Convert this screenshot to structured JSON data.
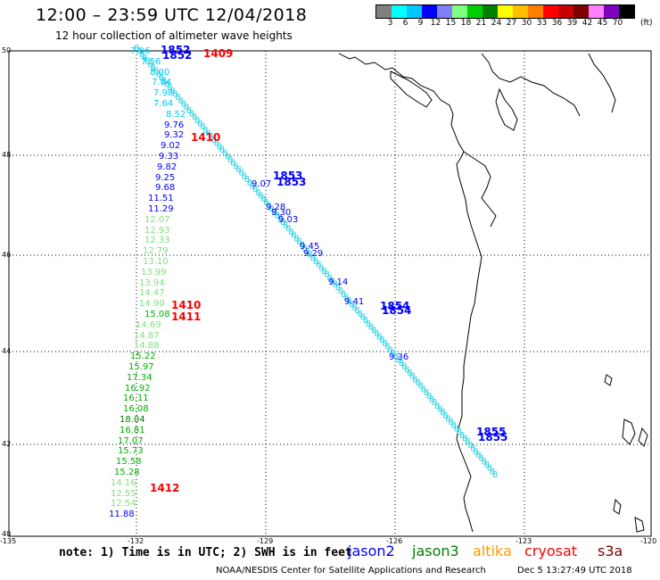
{
  "header": {
    "title": "12:00 – 23:59 UTC 12/04/2018",
    "subtitle": "12 hour collection of altimeter wave heights"
  },
  "colorbar": {
    "colors": [
      "#808080",
      "#00ffff",
      "#00c8ff",
      "#0000ff",
      "#8080ff",
      "#80ff80",
      "#00d000",
      "#008000",
      "#ffff00",
      "#ffc000",
      "#ff8000",
      "#ff0000",
      "#c80000",
      "#800000",
      "#ff80ff",
      "#8000c0",
      "#000000"
    ],
    "labels": [
      "3",
      "6",
      "9",
      "12",
      "15",
      "18",
      "21",
      "24",
      "27",
      "30",
      "33",
      "36",
      "39",
      "42",
      "45",
      "70"
    ],
    "unit": "(ft)"
  },
  "axes": {
    "lat_labels": [
      "50",
      "48",
      "46",
      "44",
      "42",
      "40"
    ],
    "lon_labels": [
      "-135",
      "-132",
      "-129",
      "-126",
      "-123",
      "-120"
    ]
  },
  "wave_columns": {
    "west_track": [
      {
        "v": "7.06",
        "c": "#00c8ff"
      },
      {
        "v": "7.56",
        "c": "#00c8ff"
      },
      {
        "v": "8.00",
        "c": "#00c8ff"
      },
      {
        "v": "7.84",
        "c": "#00c8ff"
      },
      {
        "v": "7.98",
        "c": "#00c8ff"
      },
      {
        "v": "7.64",
        "c": "#00c8ff"
      },
      {
        "v": "8.52",
        "c": "#00c8ff"
      },
      {
        "v": "9.76",
        "c": "#0000ff"
      },
      {
        "v": "9.32",
        "c": "#0000ff"
      },
      {
        "v": "9.02",
        "c": "#0000ff"
      },
      {
        "v": "9.33",
        "c": "#0000ff"
      },
      {
        "v": "9.82",
        "c": "#0000ff"
      },
      {
        "v": "9.25",
        "c": "#0000ff"
      },
      {
        "v": "9.68",
        "c": "#0000ff"
      },
      {
        "v": "11.51",
        "c": "#0000ff"
      },
      {
        "v": "11.29",
        "c": "#0000ff"
      },
      {
        "v": "12.07",
        "c": "#80e080"
      },
      {
        "v": "12.93",
        "c": "#80e080"
      },
      {
        "v": "12.33",
        "c": "#80e080"
      },
      {
        "v": "12.79",
        "c": "#80e080"
      },
      {
        "v": "13.10",
        "c": "#80e080"
      },
      {
        "v": "13.99",
        "c": "#80e080"
      },
      {
        "v": "13.94",
        "c": "#80e080"
      },
      {
        "v": "14.47",
        "c": "#80e080"
      },
      {
        "v": "14.90",
        "c": "#80e080"
      },
      {
        "v": "15.08",
        "c": "#00b000"
      },
      {
        "v": "14.69",
        "c": "#80e080"
      },
      {
        "v": "14.87",
        "c": "#80e080"
      },
      {
        "v": "14.88",
        "c": "#80e080"
      },
      {
        "v": "15.22",
        "c": "#00b000"
      },
      {
        "v": "15.97",
        "c": "#00b000"
      },
      {
        "v": "17.34",
        "c": "#00b000"
      },
      {
        "v": "16.92",
        "c": "#00b000"
      },
      {
        "v": "16.11",
        "c": "#00b000"
      },
      {
        "v": "16.08",
        "c": "#00b000"
      },
      {
        "v": "18.04",
        "c": "#008000"
      },
      {
        "v": "16.81",
        "c": "#00b000"
      },
      {
        "v": "17.07",
        "c": "#00b000"
      },
      {
        "v": "15.73",
        "c": "#00b000"
      },
      {
        "v": "15.58",
        "c": "#00b000"
      },
      {
        "v": "15.28",
        "c": "#00b000"
      },
      {
        "v": "14.16",
        "c": "#80e080"
      },
      {
        "v": "12.55",
        "c": "#80e080"
      },
      {
        "v": "12.54",
        "c": "#80e080"
      },
      {
        "v": "11.88",
        "c": "#0000ff"
      }
    ],
    "diag_track": [
      {
        "v": "9.07",
        "c": "#0000ff"
      },
      {
        "v": "9.28",
        "c": "#0000ff"
      },
      {
        "v": "9.30",
        "c": "#0000ff"
      },
      {
        "v": "9.03",
        "c": "#0000ff"
      },
      {
        "v": "9.45",
        "c": "#0000ff"
      },
      {
        "v": "9.29",
        "c": "#0000ff"
      },
      {
        "v": "9.14",
        "c": "#0000ff"
      },
      {
        "v": "9.41",
        "c": "#0000ff"
      },
      {
        "v": "9.36",
        "c": "#0000ff"
      }
    ]
  },
  "time_labels": [
    {
      "t": "1852",
      "c": "#0000ff"
    },
    {
      "t": "1852",
      "c": "#0000ff"
    },
    {
      "t": "1409",
      "c": "#ff0000"
    },
    {
      "t": "1410",
      "c": "#ff0000"
    },
    {
      "t": "1853",
      "c": "#0000ff"
    },
    {
      "t": "1853",
      "c": "#0000ff"
    },
    {
      "t": "1410",
      "c": "#ff0000"
    },
    {
      "t": "1411",
      "c": "#ff0000"
    },
    {
      "t": "1854",
      "c": "#0000ff"
    },
    {
      "t": "1854",
      "c": "#0000ff"
    },
    {
      "t": "1855",
      "c": "#0000ff"
    },
    {
      "t": "1855",
      "c": "#0000ff"
    },
    {
      "t": "1412",
      "c": "#ff0000"
    }
  ],
  "footer": {
    "note": "note: 1) Time is in UTC; 2) SWH is in feet",
    "legend": [
      {
        "name": "jason2",
        "color": "#0000ff"
      },
      {
        "name": "jason3",
        "color": "#008000"
      },
      {
        "name": "altika",
        "color": "#ff9900"
      },
      {
        "name": "cryosat",
        "color": "#ff0000"
      },
      {
        "name": "s3a",
        "color": "#800000"
      }
    ],
    "credit": "NOAA/NESDIS Center for Satellite Applications and Research",
    "timestamp": "Dec  5 13:27:49 UTC 2018"
  }
}
